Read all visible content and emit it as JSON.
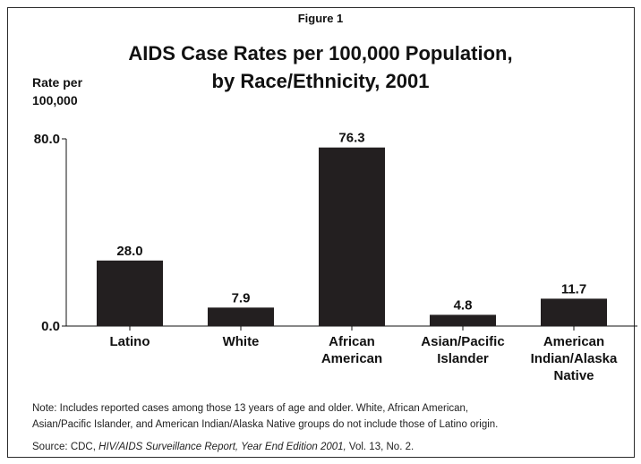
{
  "figure_label": "Figure 1",
  "chart_data": {
    "type": "bar",
    "title": "AIDS Case Rates per 100,000 Population, by Race/Ethnicity, 2001",
    "title_lines": [
      "AIDS Case Rates per 100,000 Population,",
      "by Race/Ethnicity, 2001"
    ],
    "ylabel_lines": [
      "Rate per",
      "100,000"
    ],
    "xlabel": "",
    "categories": [
      "Latino",
      "White",
      "African American",
      "Asian/Pacific Islander",
      "American Indian/Alaska Native"
    ],
    "category_label_lines": [
      [
        "Latino"
      ],
      [
        "White"
      ],
      [
        "African",
        "American"
      ],
      [
        "Asian/Pacific",
        "Islander"
      ],
      [
        "American",
        "Indian/Alaska",
        "Native"
      ]
    ],
    "values": [
      28.0,
      7.9,
      76.3,
      4.8,
      11.7
    ],
    "data_labels": [
      "28.0",
      "7.9",
      "76.3",
      "4.8",
      "11.7"
    ],
    "ylim": [
      0,
      80
    ],
    "y_ticks": [
      0,
      80
    ],
    "y_tick_labels": [
      "0.0",
      "80.0"
    ],
    "grid": false,
    "legend": "none",
    "bar_color": "#231f20"
  },
  "note_lines": [
    "Note: Includes reported cases among those 13 years of age and older.  White, African American,",
    "Asian/Pacific Islander, and American Indian/Alaska Native groups do not include those of Latino origin."
  ],
  "source": {
    "prefix": "Source: CDC, ",
    "italic": "HIV/AIDS Surveillance Report, Year End Edition 2001,",
    "suffix": " Vol. 13, No. 2."
  }
}
